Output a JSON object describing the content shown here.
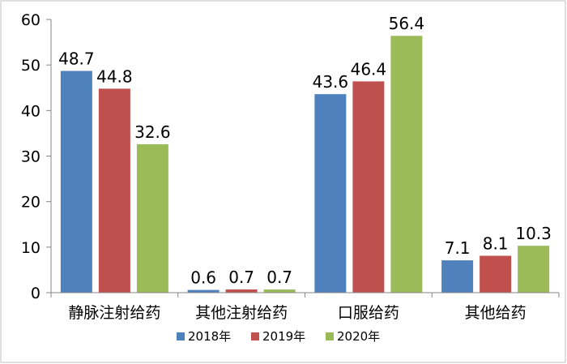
{
  "chart_data": {
    "type": "bar",
    "categories": [
      "静脉注射给药",
      "其他注射给药",
      "口服给药",
      "其他给药"
    ],
    "series": [
      {
        "name": "2018年",
        "color": "#4F81BD",
        "values": [
          48.7,
          0.6,
          43.6,
          7.1
        ]
      },
      {
        "name": "2019年",
        "color": "#C0504D",
        "values": [
          44.8,
          0.7,
          46.4,
          8.1
        ]
      },
      {
        "name": "2020年",
        "color": "#9BBB59",
        "values": [
          32.6,
          0.7,
          56.4,
          10.3
        ]
      }
    ],
    "title": "",
    "xlabel": "",
    "ylabel": "",
    "ylim": [
      0,
      60
    ],
    "yticks": [
      0,
      10,
      20,
      30,
      40,
      50,
      60
    ],
    "grid": false,
    "data_labels": true,
    "legend_position": "bottom"
  }
}
